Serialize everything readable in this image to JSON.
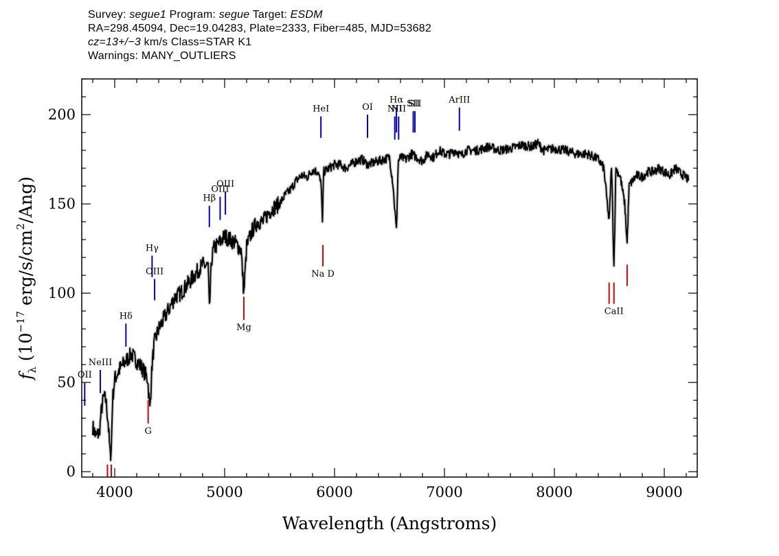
{
  "header": {
    "survey_label": "Survey:",
    "survey": "segue1",
    "program_label": "Program:",
    "program": "segue",
    "target_label": "Target:",
    "target": "ESDM",
    "line2": "RA=298.45094, Dec=19.04283, Plate=2333, Fiber=485, MJD=53682",
    "cz": "cz=13+/−3",
    "cz_rest": " km/s Class=STAR K1",
    "warnings": "Warnings: MANY_OUTLIERS"
  },
  "chart_data": {
    "type": "line",
    "title": "",
    "xlabel": "Wavelength (Angstroms)",
    "ylabel": "f_λ (10^-17 erg/s/cm^2/Ang)",
    "xlim": [
      3700,
      9300
    ],
    "ylim": [
      -3,
      220
    ],
    "xticks": [
      4000,
      5000,
      6000,
      7000,
      8000,
      9000
    ],
    "yticks": [
      0,
      50,
      100,
      150,
      200
    ],
    "x_minor_step": 200,
    "y_minor_step": 10,
    "grid": false,
    "legend": "none",
    "colors": {
      "spectrum": "#000000",
      "error": "#bbbbbb",
      "emission": "#0000cc",
      "absorption": "#dd0000"
    },
    "series": [
      {
        "x": [
          3800,
          3830,
          3860,
          3880,
          3900,
          3920,
          3940,
          3960,
          3970,
          3980,
          4000,
          4050,
          4100,
          4130,
          4150,
          4200,
          4250,
          4300,
          4320,
          4340,
          4360,
          4400,
          4450,
          4500,
          4550,
          4600,
          4650,
          4700,
          4750,
          4800,
          4850,
          4861,
          4880,
          4900,
          4950,
          5000,
          5050,
          5100,
          5150,
          5175,
          5200,
          5250,
          5300,
          5350,
          5400,
          5450,
          5500,
          5550,
          5600,
          5650,
          5700,
          5750,
          5800,
          5850,
          5880,
          5890,
          5900,
          5950,
          6000,
          6050,
          6100,
          6150,
          6200,
          6250,
          6300,
          6350,
          6400,
          6450,
          6500,
          6530,
          6563,
          6580,
          6600,
          6650,
          6700,
          6750,
          6800,
          6850,
          6900,
          6950,
          7000,
          7050,
          7100,
          7150,
          7200,
          7300,
          7400,
          7500,
          7600,
          7700,
          7800,
          7850,
          7900,
          8000,
          8100,
          8200,
          8300,
          8400,
          8450,
          8498,
          8520,
          8542,
          8560,
          8600,
          8640,
          8662,
          8680,
          8700,
          8750,
          8800,
          8850,
          8900,
          8950,
          9000,
          9050,
          9100,
          9150,
          9200,
          9220
        ],
        "y": [
          25,
          20,
          22,
          35,
          42,
          40,
          28,
          8,
          15,
          40,
          52,
          58,
          62,
          64,
          66,
          62,
          58,
          52,
          35,
          60,
          72,
          80,
          86,
          92,
          98,
          100,
          104,
          108,
          112,
          116,
          115,
          90,
          118,
          125,
          128,
          132,
          130,
          128,
          124,
          100,
          126,
          135,
          140,
          140,
          145,
          148,
          150,
          155,
          158,
          163,
          166,
          165,
          169,
          168,
          160,
          138,
          168,
          170,
          172,
          172,
          170,
          172,
          174,
          175,
          172,
          173,
          174,
          175,
          176,
          162,
          135,
          174,
          176,
          175,
          178,
          176,
          174,
          178,
          176,
          180,
          178,
          178,
          180,
          177,
          180,
          180,
          182,
          180,
          181,
          183,
          182,
          184,
          180,
          181,
          180,
          178,
          178,
          175,
          170,
          140,
          172,
          115,
          170,
          165,
          150,
          128,
          160,
          162,
          166,
          165,
          168,
          168,
          170,
          168,
          166,
          170,
          167,
          165,
          163
        ]
      }
    ],
    "emission_lines": [
      {
        "label": "OII",
        "x": 3727,
        "y_bottom": 37,
        "y_top": 50
      },
      {
        "label": "NeIII",
        "x": 3869,
        "y_bottom": 44,
        "y_top": 57
      },
      {
        "label": "Hδ",
        "x": 4102,
        "y_bottom": 70,
        "y_top": 83
      },
      {
        "label": "Hγ",
        "x": 4340,
        "y_bottom": 109,
        "y_top": 121
      },
      {
        "label": "OIII",
        "x": 4363,
        "y_bottom": 96,
        "y_top": 108
      },
      {
        "label": "Hβ",
        "x": 4861,
        "y_bottom": 137,
        "y_top": 149
      },
      {
        "label": "OIII",
        "x": 4959,
        "y_bottom": 141,
        "y_top": 154
      },
      {
        "label": "OIII",
        "x": 5007,
        "y_bottom": 144,
        "y_top": 157
      },
      {
        "label": "HeI",
        "x": 5876,
        "y_bottom": 187,
        "y_top": 199
      },
      {
        "label": "OI",
        "x": 6300,
        "y_bottom": 187,
        "y_top": 200
      },
      {
        "label": "NII",
        "x": 6548,
        "y_bottom": 186,
        "y_top": 199
      },
      {
        "label": "Hα",
        "x": 6563,
        "y_bottom": 190,
        "y_top": 204
      },
      {
        "label": "NII",
        "x": 6583,
        "y_bottom": 186,
        "y_top": 199
      },
      {
        "label": "SII",
        "x": 6716,
        "y_bottom": 190,
        "y_top": 202
      },
      {
        "label": "SII",
        "x": 6731,
        "y_bottom": 190,
        "y_top": 202
      },
      {
        "label": "ArIII",
        "x": 7136,
        "y_bottom": 191,
        "y_top": 204
      }
    ],
    "absorption_lines": [
      {
        "label": "",
        "x": 3934,
        "y_bottom": -5,
        "y_top": 4
      },
      {
        "label": "",
        "x": 3969,
        "y_bottom": -5,
        "y_top": 4
      },
      {
        "label": "G",
        "x": 4304,
        "y_bottom": 27,
        "y_top": 40
      },
      {
        "label": "Mg",
        "x": 5175,
        "y_bottom": 85,
        "y_top": 98
      },
      {
        "label": "Na D",
        "x": 5894,
        "y_bottom": 115,
        "y_top": 127
      },
      {
        "label": "",
        "x": 8498,
        "y_bottom": 94,
        "y_top": 106
      },
      {
        "label": "CaII",
        "x": 8542,
        "y_bottom": 94,
        "y_top": 106
      },
      {
        "label": "",
        "x": 8662,
        "y_bottom": 104,
        "y_top": 116
      }
    ]
  }
}
